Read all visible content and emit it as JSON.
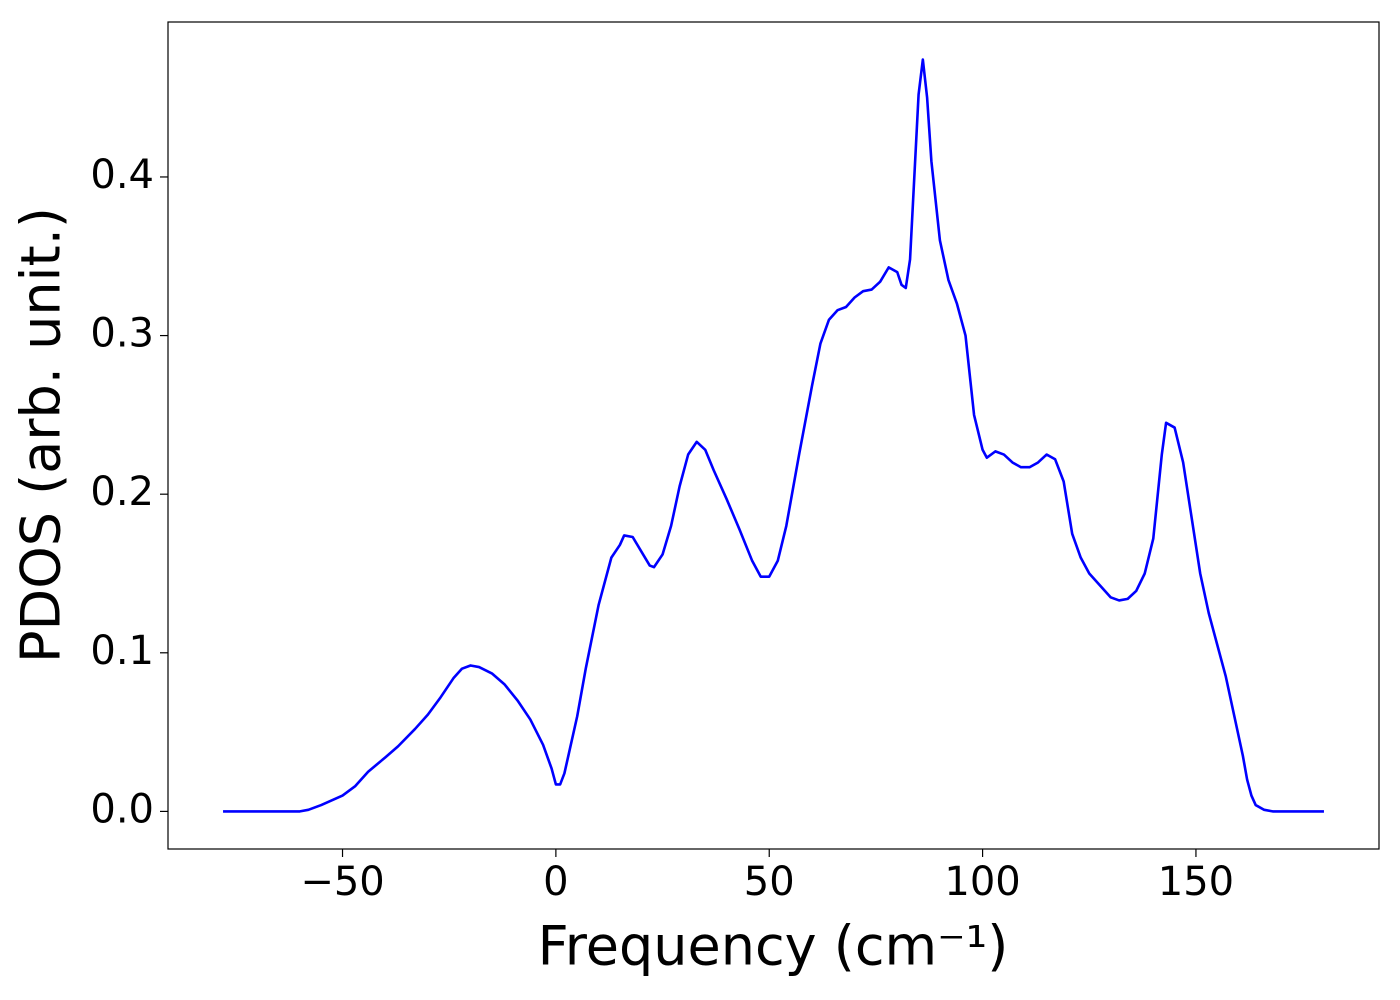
{
  "chart_data": {
    "type": "line",
    "xlabel": "Frequency (cm⁻¹)",
    "ylabel": "PDOS (arb. unit.)",
    "x": [
      -78,
      -70,
      -60,
      -58,
      -55,
      -50,
      -47,
      -44,
      -40,
      -37,
      -33,
      -30,
      -27,
      -24,
      -22,
      -20,
      -18,
      -15,
      -12,
      -9,
      -6,
      -3,
      -1,
      0,
      1,
      2,
      3,
      5,
      7,
      10,
      13,
      15,
      16,
      18,
      20,
      22,
      23,
      25,
      27,
      29,
      31,
      33,
      35,
      37,
      40,
      43,
      46,
      48,
      50,
      52,
      54,
      57,
      60,
      62,
      64,
      66,
      68,
      70,
      72,
      74,
      76,
      78,
      80,
      81,
      82,
      83,
      85,
      86,
      87,
      88,
      90,
      92,
      94,
      96,
      98,
      100,
      101,
      103,
      105,
      107,
      109,
      111,
      113,
      115,
      117,
      119,
      121,
      123,
      125,
      128,
      130,
      132,
      134,
      136,
      138,
      140,
      142,
      143,
      145,
      147,
      149,
      151,
      153,
      155,
      157,
      159,
      161,
      162,
      163,
      164,
      166,
      168,
      175,
      180
    ],
    "series": [
      {
        "name": "PDOS",
        "color": "#0000ff",
        "values": [
          0,
          0,
          0,
          0.001,
          0.004,
          0.01,
          0.016,
          0.025,
          0.034,
          0.041,
          0.052,
          0.061,
          0.072,
          0.084,
          0.09,
          0.092,
          0.091,
          0.087,
          0.08,
          0.07,
          0.058,
          0.042,
          0.027,
          0.017,
          0.017,
          0.024,
          0.036,
          0.06,
          0.09,
          0.13,
          0.16,
          0.168,
          0.174,
          0.173,
          0.164,
          0.155,
          0.154,
          0.162,
          0.18,
          0.205,
          0.225,
          0.233,
          0.228,
          0.215,
          0.197,
          0.178,
          0.158,
          0.148,
          0.148,
          0.158,
          0.18,
          0.225,
          0.268,
          0.295,
          0.31,
          0.316,
          0.318,
          0.324,
          0.328,
          0.329,
          0.334,
          0.343,
          0.34,
          0.332,
          0.33,
          0.348,
          0.452,
          0.474,
          0.45,
          0.41,
          0.36,
          0.335,
          0.32,
          0.3,
          0.25,
          0.228,
          0.223,
          0.227,
          0.225,
          0.22,
          0.217,
          0.217,
          0.22,
          0.225,
          0.222,
          0.208,
          0.175,
          0.16,
          0.15,
          0.141,
          0.135,
          0.133,
          0.134,
          0.139,
          0.15,
          0.172,
          0.225,
          0.245,
          0.242,
          0.22,
          0.185,
          0.15,
          0.125,
          0.105,
          0.085,
          0.06,
          0.035,
          0.02,
          0.01,
          0.004,
          0.001,
          0,
          0,
          0
        ]
      }
    ],
    "xlim": [
      -90.9,
      192.9
    ],
    "ylim": [
      -0.0237,
      0.4977
    ],
    "xticks": [
      {
        "value": -50,
        "label": "−50"
      },
      0,
      50,
      100,
      150
    ],
    "yticks": [
      {
        "value": 0,
        "label": "0.0"
      },
      {
        "value": 0.1,
        "label": "0.1"
      },
      {
        "value": 0.2,
        "label": "0.2"
      },
      {
        "value": 0.3,
        "label": "0.3"
      },
      {
        "value": 0.4,
        "label": "0.4"
      }
    ],
    "grid": false
  }
}
